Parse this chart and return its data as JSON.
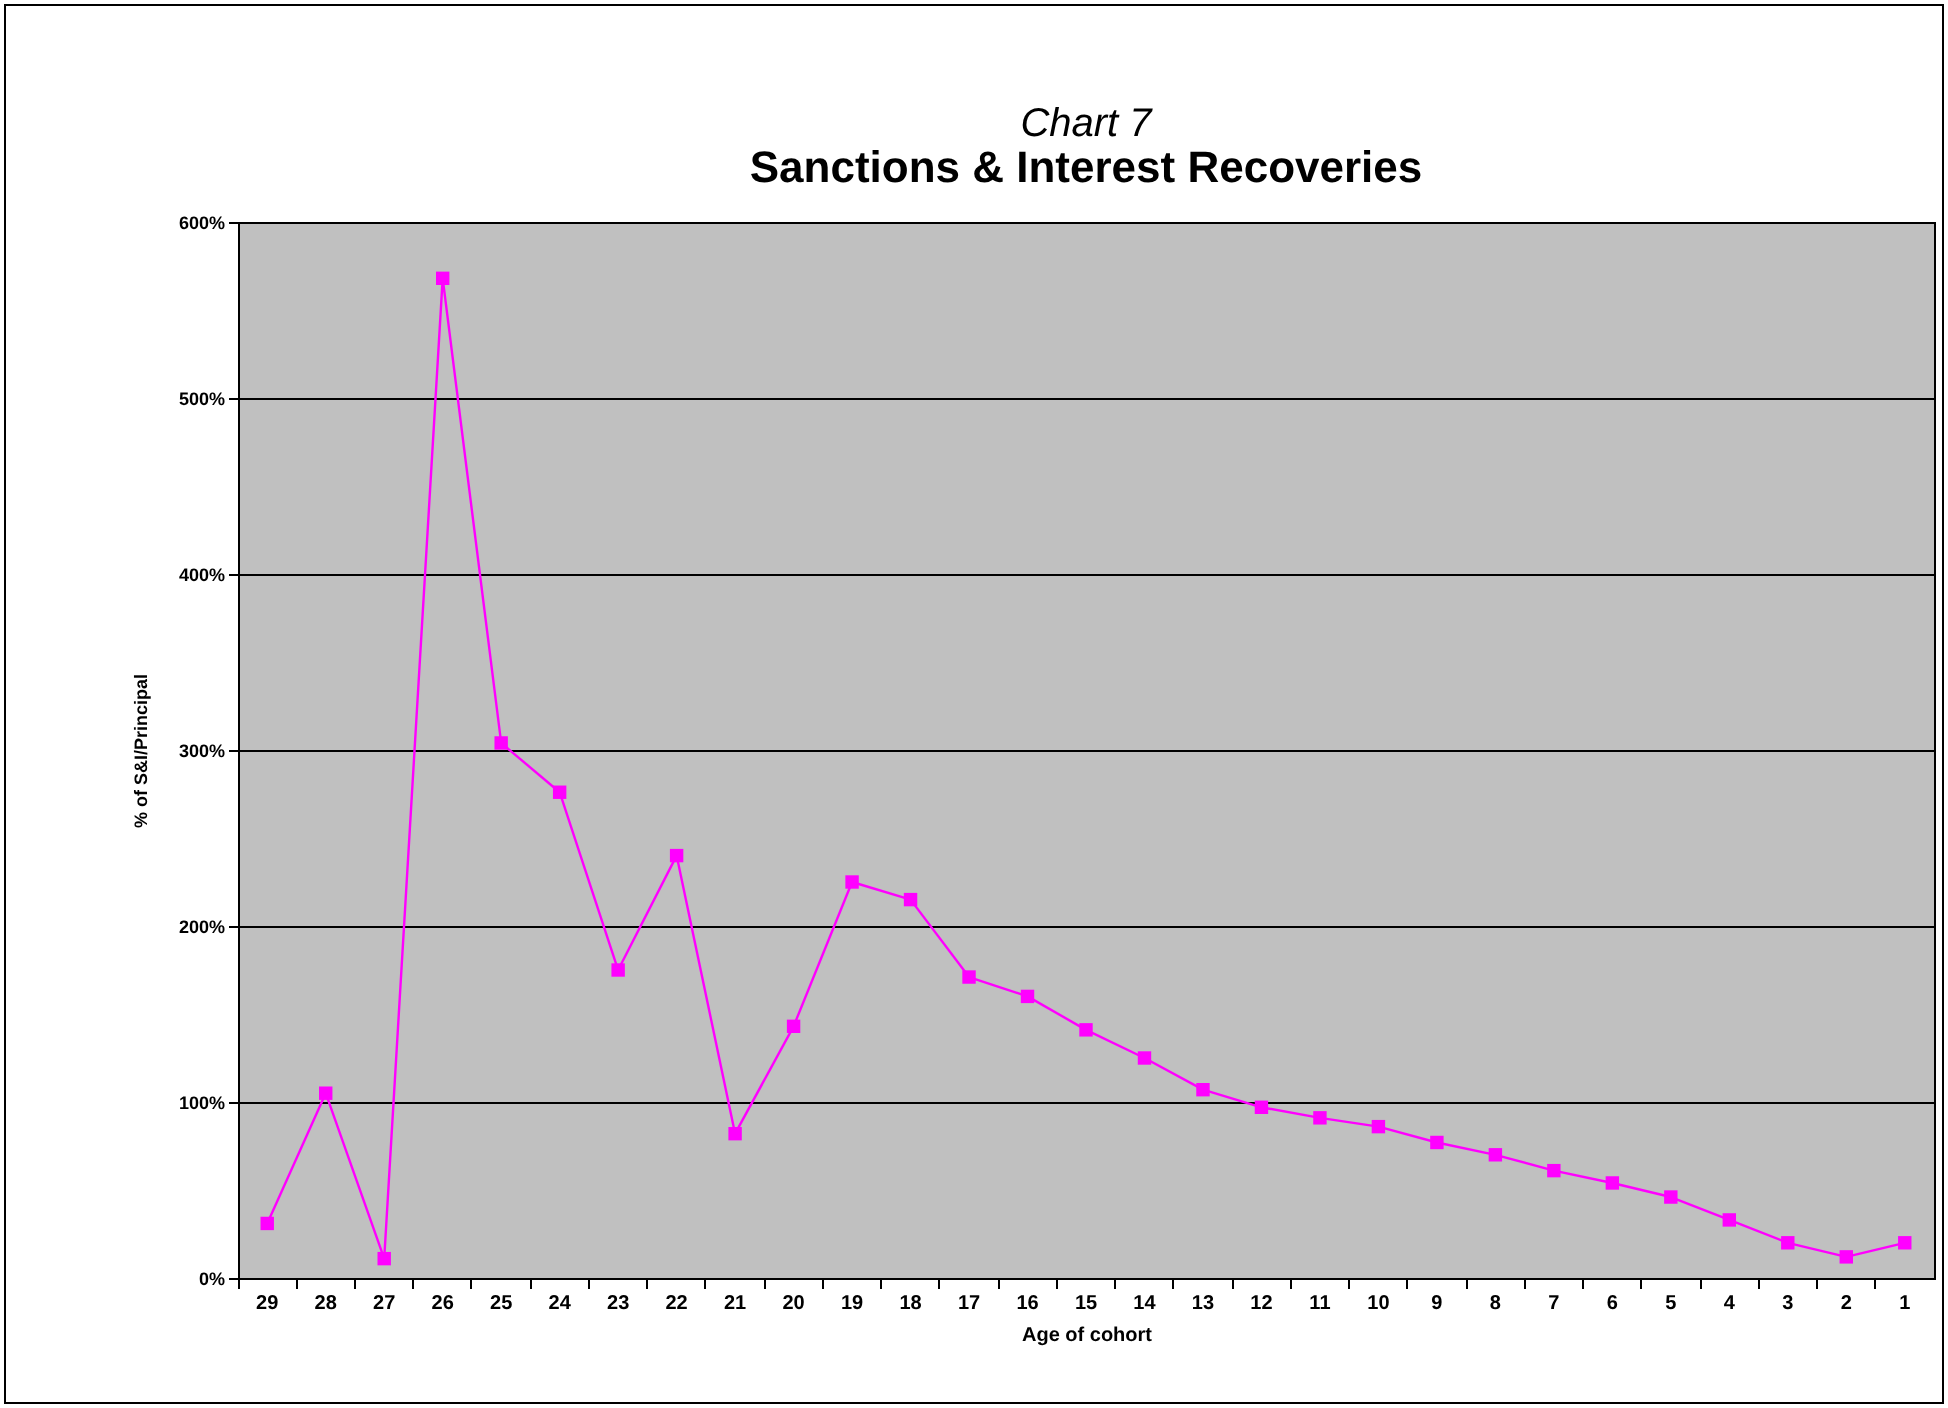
{
  "chart_data": {
    "type": "line",
    "title": "Chart 7",
    "subtitle": "Sanctions & Interest Recoveries",
    "xlabel": "Age of cohort",
    "ylabel": "% of S&I/Principal",
    "categories": [
      "29",
      "28",
      "27",
      "26",
      "25",
      "24",
      "23",
      "22",
      "21",
      "20",
      "19",
      "18",
      "17",
      "16",
      "15",
      "14",
      "13",
      "12",
      "11",
      "10",
      "9",
      "8",
      "7",
      "6",
      "5",
      "4",
      "3",
      "2",
      "1"
    ],
    "series": [
      {
        "color": "#ff00ff",
        "values": [
          31,
          105,
          11,
          568,
          304,
          276,
          175,
          240,
          82,
          143,
          225,
          215,
          171,
          160,
          141,
          125,
          107,
          97,
          91,
          86,
          77,
          70,
          61,
          54,
          46,
          33,
          20,
          12,
          20
        ]
      }
    ],
    "ylim": [
      0,
      600
    ],
    "yticks": [
      {
        "value": 0,
        "label": "0%"
      },
      {
        "value": 100,
        "label": "100%"
      },
      {
        "value": 200,
        "label": "200%"
      },
      {
        "value": 300,
        "label": "300%"
      },
      {
        "value": 400,
        "label": "400%"
      },
      {
        "value": 500,
        "label": "500%"
      },
      {
        "value": 600,
        "label": "600%"
      }
    ],
    "grid": "y",
    "marker": "square",
    "line_style": "solid"
  }
}
